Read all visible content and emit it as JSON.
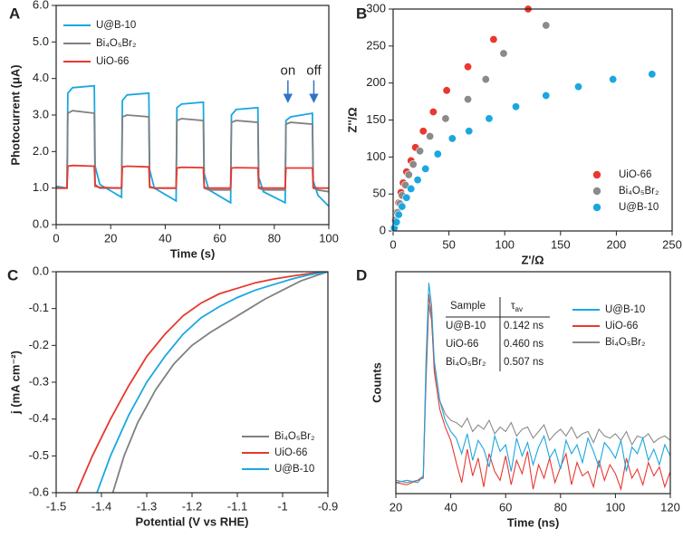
{
  "chart_data": [
    {
      "type": "line",
      "panel": "A",
      "xlabel": "Time (s)",
      "ylabel": "Photocurrent (μA)",
      "xlim": [
        0,
        100
      ],
      "ylim": [
        0,
        6
      ],
      "xticks": [
        0,
        20,
        40,
        60,
        80,
        100
      ],
      "yticks": [
        {
          "value": 0,
          "label": "0.0"
        },
        {
          "value": 1,
          "label": "1.0"
        },
        {
          "value": 2,
          "label": "2.0"
        },
        {
          "value": 3,
          "label": "3.0"
        },
        {
          "value": 4,
          "label": "4.0"
        },
        {
          "value": 5,
          "label": "5.0"
        },
        {
          "value": 6,
          "label": "6.0"
        }
      ],
      "legend": "upper left",
      "x": [
        0,
        4,
        4.3,
        6,
        14,
        14.3,
        16,
        24,
        24.3,
        26,
        34,
        34.3,
        36,
        44,
        44.3,
        46,
        54,
        54.3,
        56,
        64,
        64.3,
        66,
        74,
        74.3,
        76,
        84,
        84.3,
        86,
        94,
        94.3,
        96,
        100
      ],
      "series": [
        {
          "name": "U@B-10",
          "color": "#1aa7e0",
          "values": [
            1.05,
            1.0,
            3.6,
            3.75,
            3.8,
            1.6,
            1.1,
            0.75,
            3.4,
            3.55,
            3.6,
            1.5,
            1.0,
            0.65,
            3.2,
            3.3,
            3.35,
            1.4,
            0.95,
            0.6,
            3.0,
            3.15,
            3.2,
            1.3,
            0.9,
            0.6,
            2.85,
            2.95,
            3.05,
            1.2,
            0.8,
            0.5
          ]
        },
        {
          "name": "Bi₄O₅Br₂",
          "color": "#808080",
          "values": [
            1.0,
            1.0,
            3.05,
            3.12,
            3.05,
            1.1,
            1.0,
            1.0,
            2.95,
            3.0,
            2.95,
            1.05,
            1.0,
            1.0,
            2.85,
            2.9,
            2.85,
            1.0,
            0.95,
            0.95,
            2.8,
            2.85,
            2.8,
            1.0,
            0.95,
            0.95,
            2.75,
            2.8,
            2.75,
            1.0,
            0.95,
            0.9
          ]
        },
        {
          "name": "UiO-66",
          "color": "#e8382f",
          "values": [
            1.0,
            1.0,
            1.6,
            1.62,
            1.6,
            1.05,
            1.02,
            1.0,
            1.58,
            1.6,
            1.58,
            1.02,
            1.0,
            1.0,
            1.55,
            1.57,
            1.56,
            1.02,
            1.0,
            1.0,
            1.55,
            1.56,
            1.55,
            1.02,
            1.0,
            1.0,
            1.55,
            1.55,
            1.55,
            1.02,
            1.0,
            1.0
          ]
        }
      ],
      "annotations": [
        {
          "text": "on",
          "x": 85,
          "y": 4.2
        },
        {
          "text": "off",
          "x": 94.5,
          "y": 4.2
        }
      ]
    },
    {
      "type": "scatter",
      "panel": "B",
      "xlabel": "Z'/Ω",
      "ylabel": "Z''/Ω",
      "xlim": [
        0,
        250
      ],
      "ylim": [
        0,
        300
      ],
      "xticks": [
        0,
        50,
        100,
        150,
        200,
        250
      ],
      "yticks": [
        0,
        50,
        100,
        150,
        200,
        250,
        300
      ],
      "legend": "lower right",
      "series": [
        {
          "name": "UiO-66",
          "color": "#e8382f",
          "x": [
            1,
            2,
            3,
            5,
            7,
            9,
            12,
            16,
            20,
            27,
            36,
            48,
            67,
            90,
            121
          ],
          "values": [
            5,
            15,
            25,
            38,
            52,
            65,
            80,
            95,
            113,
            135,
            161,
            190,
            222,
            259,
            300
          ]
        },
        {
          "name": "Bi₄O₅Br₂",
          "color": "#8a8a8a",
          "x": [
            1,
            2,
            4,
            6,
            8,
            11,
            14,
            18,
            24,
            33,
            47,
            67,
            83,
            99,
            137
          ],
          "values": [
            5,
            14,
            25,
            37,
            48,
            62,
            76,
            90,
            108,
            128,
            152,
            178,
            205,
            240,
            278
          ]
        },
        {
          "name": "U@B-10",
          "color": "#1aa7e0",
          "x": [
            1,
            3,
            5,
            8,
            12,
            16,
            22,
            29,
            40,
            53,
            68,
            86,
            110,
            137,
            166,
            197,
            232
          ],
          "values": [
            4,
            12,
            22,
            33,
            45,
            57,
            69,
            84,
            104,
            125,
            135,
            152,
            168,
            183,
            195,
            205,
            212
          ]
        }
      ]
    },
    {
      "type": "line",
      "panel": "C",
      "xlabel": "Potential (V vs RHE)",
      "ylabel": "j (mA cm⁻²)",
      "xlim": [
        -1.5,
        -0.9
      ],
      "ylim": [
        -0.6,
        0
      ],
      "xticks": [
        -1.5,
        -1.4,
        -1.3,
        -1.2,
        -1.1,
        -1.0,
        -0.9
      ],
      "yticks": [
        {
          "value": 0,
          "label": "0.0"
        },
        -0.1,
        -0.2,
        -0.3,
        -0.4,
        -0.5,
        -0.6
      ],
      "legend": "lower right",
      "series": [
        {
          "name": "Bi₄O₅Br₂",
          "color": "#808080",
          "x": [
            -1.375,
            -1.35,
            -1.32,
            -1.28,
            -1.24,
            -1.2,
            -1.16,
            -1.12,
            -1.08,
            -1.04,
            -1.0,
            -0.96,
            -0.92,
            -0.9
          ],
          "values": [
            -0.6,
            -0.5,
            -0.41,
            -0.32,
            -0.25,
            -0.2,
            -0.165,
            -0.135,
            -0.105,
            -0.075,
            -0.05,
            -0.025,
            -0.008,
            0
          ]
        },
        {
          "name": "UiO-66",
          "color": "#e8382f",
          "x": [
            -1.455,
            -1.42,
            -1.38,
            -1.34,
            -1.3,
            -1.26,
            -1.22,
            -1.18,
            -1.14,
            -1.1,
            -1.06,
            -1.02,
            -0.98,
            -0.94,
            -0.9
          ],
          "values": [
            -0.6,
            -0.5,
            -0.4,
            -0.31,
            -0.23,
            -0.17,
            -0.12,
            -0.085,
            -0.06,
            -0.045,
            -0.03,
            -0.02,
            -0.012,
            -0.005,
            0
          ]
        },
        {
          "name": "U@B-10",
          "color": "#1aa7e0",
          "x": [
            -1.41,
            -1.38,
            -1.34,
            -1.3,
            -1.26,
            -1.22,
            -1.18,
            -1.14,
            -1.1,
            -1.06,
            -1.02,
            -0.98,
            -0.94,
            -0.9
          ],
          "values": [
            -0.6,
            -0.5,
            -0.39,
            -0.3,
            -0.23,
            -0.17,
            -0.125,
            -0.095,
            -0.07,
            -0.05,
            -0.035,
            -0.02,
            -0.008,
            0
          ]
        }
      ]
    },
    {
      "type": "line",
      "panel": "D",
      "xlabel": "Time (ns)",
      "ylabel": "Counts",
      "xlim": [
        20,
        120
      ],
      "ylim": [
        0,
        1
      ],
      "xticks": [
        20,
        40,
        60,
        80,
        100,
        120
      ],
      "legend": "upper right",
      "x": [
        20,
        24,
        28,
        30,
        31,
        32,
        33,
        34,
        36,
        38,
        40,
        42,
        44,
        46,
        48,
        50,
        52,
        54,
        56,
        58,
        60,
        62,
        64,
        66,
        68,
        70,
        72,
        74,
        76,
        78,
        80,
        82,
        84,
        86,
        88,
        90,
        92,
        94,
        96,
        98,
        100,
        102,
        104,
        106,
        108,
        110,
        112,
        114,
        116,
        118,
        120
      ],
      "series": [
        {
          "name": "U@B-10",
          "color": "#1aa7e0",
          "values": [
            0.05,
            0.06,
            0.05,
            0.08,
            0.6,
            0.95,
            0.85,
            0.6,
            0.42,
            0.33,
            0.28,
            0.25,
            0.18,
            0.27,
            0.15,
            0.24,
            0.2,
            0.12,
            0.26,
            0.19,
            0.22,
            0.1,
            0.25,
            0.17,
            0.23,
            0.13,
            0.21,
            0.26,
            0.16,
            0.2,
            0.11,
            0.24,
            0.18,
            0.22,
            0.14,
            0.25,
            0.19,
            0.12,
            0.23,
            0.2,
            0.16,
            0.24,
            0.1,
            0.21,
            0.18,
            0.25,
            0.15,
            0.2,
            0.13,
            0.22,
            0.17
          ]
        },
        {
          "name": "UiO-66",
          "color": "#e8382f",
          "values": [
            0.05,
            0.04,
            0.06,
            0.07,
            0.55,
            0.9,
            0.8,
            0.55,
            0.38,
            0.3,
            0.24,
            0.14,
            0.05,
            0.2,
            0.08,
            0.16,
            0.03,
            0.18,
            0.1,
            0.06,
            0.17,
            0.04,
            0.15,
            0.09,
            0.19,
            0.02,
            0.13,
            0.07,
            0.16,
            0.05,
            0.12,
            0.18,
            0.04,
            0.14,
            0.08,
            0.1,
            0.03,
            0.15,
            0.06,
            0.13,
            0.09,
            0.02,
            0.16,
            0.07,
            0.11,
            0.04,
            0.14,
            0.08,
            0.12,
            0.03,
            0.1
          ]
        },
        {
          "name": "Bi₄O₅Br₂",
          "color": "#8a8a8a",
          "values": [
            0.06,
            0.05,
            0.06,
            0.08,
            0.5,
            0.85,
            0.78,
            0.58,
            0.42,
            0.36,
            0.33,
            0.32,
            0.3,
            0.34,
            0.28,
            0.31,
            0.29,
            0.33,
            0.27,
            0.3,
            0.28,
            0.32,
            0.26,
            0.29,
            0.3,
            0.25,
            0.28,
            0.31,
            0.24,
            0.27,
            0.29,
            0.26,
            0.3,
            0.25,
            0.27,
            0.28,
            0.23,
            0.29,
            0.26,
            0.25,
            0.27,
            0.24,
            0.28,
            0.22,
            0.26,
            0.25,
            0.27,
            0.23,
            0.25,
            0.26,
            0.24
          ]
        }
      ],
      "table": {
        "header": [
          "Sample",
          {
            "symbol": "τ",
            "subscript": "av"
          }
        ],
        "rows": [
          [
            "U@B-10",
            "0.142 ns"
          ],
          [
            "UiO-66",
            "0.460 ns"
          ],
          [
            "Bi₄O₅Br₂",
            "0.507 ns"
          ]
        ]
      }
    }
  ]
}
